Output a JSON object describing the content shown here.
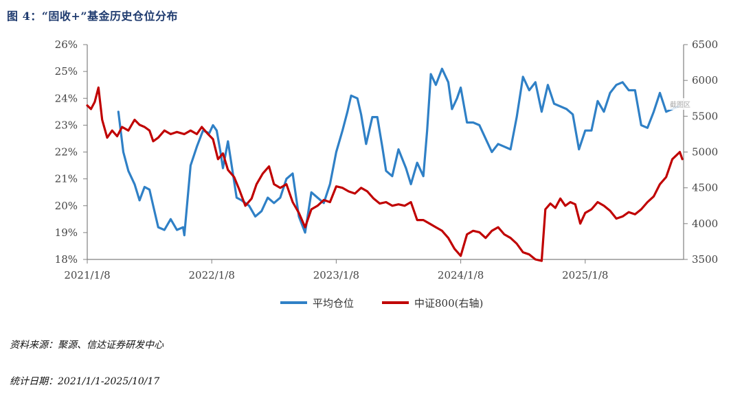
{
  "title": "图 4：“固收+”基金历史仓位分布",
  "source_note": "资料来源：聚源、信达证券研发中心",
  "date_note": "统计日期：2021/1/1-2025/10/17",
  "watermark": "截图区",
  "chart_data": {
    "type": "line",
    "title": "“固收+”基金历史仓位分布",
    "x_tick_labels": [
      "2021/1/8",
      "2022/1/8",
      "2023/1/8",
      "2024/1/8",
      "2025/1/8"
    ],
    "x_range": [
      0,
      4.78
    ],
    "y_left": {
      "range": [
        18,
        26
      ],
      "ticks": [
        "18%",
        "19%",
        "20%",
        "21%",
        "22%",
        "23%",
        "24%",
        "25%",
        "26%"
      ],
      "label": ""
    },
    "y_right": {
      "range": [
        3500,
        6500
      ],
      "ticks": [
        "3500",
        "4000",
        "4500",
        "5000",
        "5500",
        "6000",
        "6500"
      ],
      "label": ""
    },
    "legend_position": "bottom-center",
    "series": [
      {
        "name": "平均仓位",
        "axis": "left",
        "color": "#2f80c6",
        "points": [
          [
            0.25,
            23.5
          ],
          [
            0.29,
            22.0
          ],
          [
            0.33,
            21.3
          ],
          [
            0.38,
            20.8
          ],
          [
            0.42,
            20.2
          ],
          [
            0.46,
            20.7
          ],
          [
            0.5,
            20.6
          ],
          [
            0.53,
            20.0
          ],
          [
            0.57,
            19.2
          ],
          [
            0.62,
            19.1
          ],
          [
            0.67,
            19.5
          ],
          [
            0.72,
            19.1
          ],
          [
            0.77,
            19.2
          ],
          [
            0.78,
            18.9
          ],
          [
            0.83,
            21.5
          ],
          [
            0.88,
            22.2
          ],
          [
            0.93,
            22.8
          ],
          [
            0.98,
            22.7
          ],
          [
            1.01,
            23.0
          ],
          [
            1.04,
            22.8
          ],
          [
            1.07,
            22.0
          ],
          [
            1.09,
            21.4
          ],
          [
            1.13,
            22.4
          ],
          [
            1.16,
            21.5
          ],
          [
            1.2,
            20.3
          ],
          [
            1.24,
            20.2
          ],
          [
            1.3,
            20.0
          ],
          [
            1.35,
            19.6
          ],
          [
            1.4,
            19.8
          ],
          [
            1.45,
            20.3
          ],
          [
            1.5,
            20.1
          ],
          [
            1.55,
            20.3
          ],
          [
            1.6,
            21.0
          ],
          [
            1.65,
            21.2
          ],
          [
            1.7,
            19.6
          ],
          [
            1.75,
            19.0
          ],
          [
            1.8,
            20.5
          ],
          [
            1.85,
            20.3
          ],
          [
            1.9,
            20.1
          ],
          [
            1.95,
            20.8
          ],
          [
            2.0,
            22.0
          ],
          [
            2.05,
            22.8
          ],
          [
            2.09,
            23.5
          ],
          [
            2.12,
            24.1
          ],
          [
            2.17,
            24.0
          ],
          [
            2.2,
            23.4
          ],
          [
            2.24,
            22.3
          ],
          [
            2.29,
            23.3
          ],
          [
            2.33,
            23.3
          ],
          [
            2.37,
            22.2
          ],
          [
            2.4,
            21.3
          ],
          [
            2.45,
            21.1
          ],
          [
            2.5,
            22.1
          ],
          [
            2.56,
            21.4
          ],
          [
            2.6,
            20.8
          ],
          [
            2.65,
            21.6
          ],
          [
            2.7,
            21.1
          ],
          [
            2.73,
            22.8
          ],
          [
            2.76,
            24.9
          ],
          [
            2.8,
            24.5
          ],
          [
            2.85,
            25.1
          ],
          [
            2.9,
            24.6
          ],
          [
            2.93,
            23.6
          ],
          [
            2.97,
            24.0
          ],
          [
            3.0,
            24.4
          ],
          [
            3.05,
            23.1
          ],
          [
            3.1,
            23.1
          ],
          [
            3.15,
            23.0
          ],
          [
            3.2,
            22.5
          ],
          [
            3.25,
            22.0
          ],
          [
            3.3,
            22.3
          ],
          [
            3.35,
            22.2
          ],
          [
            3.4,
            22.1
          ],
          [
            3.45,
            23.3
          ],
          [
            3.5,
            24.8
          ],
          [
            3.55,
            24.3
          ],
          [
            3.6,
            24.6
          ],
          [
            3.65,
            23.5
          ],
          [
            3.7,
            24.5
          ],
          [
            3.75,
            23.8
          ],
          [
            3.8,
            23.7
          ],
          [
            3.85,
            23.6
          ],
          [
            3.9,
            23.4
          ],
          [
            3.95,
            22.1
          ],
          [
            4.0,
            22.8
          ],
          [
            4.05,
            22.8
          ],
          [
            4.1,
            23.9
          ],
          [
            4.15,
            23.5
          ],
          [
            4.2,
            24.2
          ],
          [
            4.25,
            24.5
          ],
          [
            4.3,
            24.6
          ],
          [
            4.35,
            24.3
          ],
          [
            4.4,
            24.3
          ],
          [
            4.45,
            23.0
          ],
          [
            4.5,
            22.9
          ],
          [
            4.55,
            23.5
          ],
          [
            4.6,
            24.2
          ],
          [
            4.65,
            23.5
          ],
          [
            4.7,
            23.6
          ],
          [
            4.75,
            23.7
          ]
        ]
      },
      {
        "name": "中证800(右轴)",
        "axis": "right",
        "color": "#c00000",
        "points": [
          [
            0.0,
            5650
          ],
          [
            0.03,
            5600
          ],
          [
            0.06,
            5700
          ],
          [
            0.09,
            5900
          ],
          [
            0.12,
            5450
          ],
          [
            0.16,
            5200
          ],
          [
            0.2,
            5300
          ],
          [
            0.24,
            5220
          ],
          [
            0.28,
            5350
          ],
          [
            0.33,
            5300
          ],
          [
            0.38,
            5450
          ],
          [
            0.42,
            5380
          ],
          [
            0.46,
            5350
          ],
          [
            0.5,
            5300
          ],
          [
            0.53,
            5150
          ],
          [
            0.57,
            5200
          ],
          [
            0.62,
            5300
          ],
          [
            0.67,
            5250
          ],
          [
            0.72,
            5280
          ],
          [
            0.78,
            5250
          ],
          [
            0.83,
            5300
          ],
          [
            0.88,
            5250
          ],
          [
            0.92,
            5350
          ],
          [
            0.97,
            5250
          ],
          [
            1.01,
            5180
          ],
          [
            1.05,
            4900
          ],
          [
            1.09,
            4980
          ],
          [
            1.13,
            4750
          ],
          [
            1.18,
            4650
          ],
          [
            1.22,
            4480
          ],
          [
            1.27,
            4250
          ],
          [
            1.32,
            4350
          ],
          [
            1.36,
            4550
          ],
          [
            1.41,
            4700
          ],
          [
            1.46,
            4800
          ],
          [
            1.5,
            4550
          ],
          [
            1.55,
            4500
          ],
          [
            1.6,
            4550
          ],
          [
            1.65,
            4300
          ],
          [
            1.7,
            4150
          ],
          [
            1.75,
            3950
          ],
          [
            1.8,
            4200
          ],
          [
            1.85,
            4250
          ],
          [
            1.9,
            4330
          ],
          [
            1.95,
            4300
          ],
          [
            2.0,
            4520
          ],
          [
            2.05,
            4500
          ],
          [
            2.1,
            4450
          ],
          [
            2.15,
            4420
          ],
          [
            2.2,
            4500
          ],
          [
            2.25,
            4450
          ],
          [
            2.3,
            4350
          ],
          [
            2.35,
            4280
          ],
          [
            2.4,
            4300
          ],
          [
            2.45,
            4250
          ],
          [
            2.5,
            4270
          ],
          [
            2.55,
            4250
          ],
          [
            2.6,
            4300
          ],
          [
            2.65,
            4050
          ],
          [
            2.7,
            4050
          ],
          [
            2.75,
            4000
          ],
          [
            2.8,
            3950
          ],
          [
            2.85,
            3900
          ],
          [
            2.9,
            3800
          ],
          [
            2.95,
            3650
          ],
          [
            3.0,
            3550
          ],
          [
            3.05,
            3850
          ],
          [
            3.1,
            3900
          ],
          [
            3.15,
            3880
          ],
          [
            3.2,
            3800
          ],
          [
            3.25,
            3900
          ],
          [
            3.3,
            3950
          ],
          [
            3.35,
            3850
          ],
          [
            3.4,
            3800
          ],
          [
            3.45,
            3720
          ],
          [
            3.5,
            3600
          ],
          [
            3.55,
            3570
          ],
          [
            3.6,
            3500
          ],
          [
            3.65,
            3480
          ],
          [
            3.68,
            4200
          ],
          [
            3.72,
            4280
          ],
          [
            3.76,
            4220
          ],
          [
            3.8,
            4350
          ],
          [
            3.84,
            4250
          ],
          [
            3.88,
            4300
          ],
          [
            3.92,
            4270
          ],
          [
            3.96,
            4000
          ],
          [
            4.0,
            4150
          ],
          [
            4.05,
            4200
          ],
          [
            4.1,
            4300
          ],
          [
            4.15,
            4250
          ],
          [
            4.2,
            4180
          ],
          [
            4.25,
            4070
          ],
          [
            4.3,
            4100
          ],
          [
            4.35,
            4160
          ],
          [
            4.4,
            4130
          ],
          [
            4.45,
            4200
          ],
          [
            4.5,
            4300
          ],
          [
            4.55,
            4380
          ],
          [
            4.6,
            4550
          ],
          [
            4.65,
            4650
          ],
          [
            4.7,
            4900
          ],
          [
            4.73,
            4950
          ],
          [
            4.76,
            5000
          ],
          [
            4.78,
            4900
          ]
        ]
      }
    ]
  }
}
